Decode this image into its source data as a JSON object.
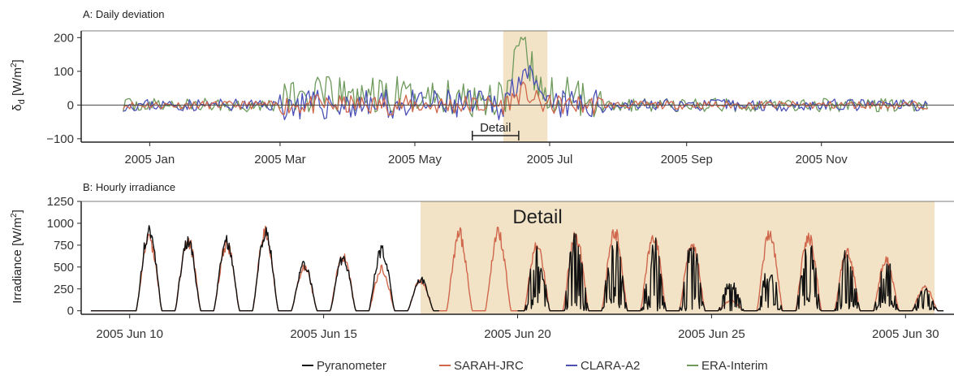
{
  "colors": {
    "Pyranometer": "#111111",
    "SARAH-JRC": "#d0674c",
    "CLARA-A2": "#4a4fb8",
    "ERA-Interim": "#6e9a5c",
    "highlight": "#f2e3c6",
    "grid": "#777777"
  },
  "legend": [
    "Pyranometer",
    "SARAH-JRC",
    "CLARA-A2",
    "ERA-Interim"
  ],
  "chart_data": [
    {
      "type": "line",
      "title": "A: Daily deviation",
      "ylabel_main": "δ",
      "ylabel_sub": "d",
      "ylabel_unit": " [W/m",
      "ylabel_sup": "2",
      "ylabel_end": "]",
      "ylim": [
        -110,
        220
      ],
      "yticks": [
        -100,
        0,
        100,
        200
      ],
      "yticklabels": [
        "−100",
        "0",
        "100",
        "200"
      ],
      "xlim": [
        "2004-12-01",
        "2005-12-31"
      ],
      "xticks": [
        "2005-01-01",
        "2005-03-01",
        "2005-05-01",
        "2005-07-01",
        "2005-09-01",
        "2005-11-01"
      ],
      "xticklabels": [
        "2005 Jan",
        "2005 Mar",
        "2005 May",
        "2005 Jul",
        "2005 Sep",
        "2005 Nov"
      ],
      "highlight": [
        "2005-06-10",
        "2005-06-30"
      ],
      "detail_label": "Detail",
      "detail_bracket": [
        "2005-05-27",
        "2005-06-17"
      ],
      "reference_line": 0,
      "series": [
        {
          "name": "SARAH-JRC",
          "x_start": "2004-12-20",
          "amplitude": 12,
          "amp_hot": 30,
          "seed": 11
        },
        {
          "name": "CLARA-A2",
          "x_start": "2004-12-20",
          "amplitude": 18,
          "amp_hot": 45,
          "seed": 23
        },
        {
          "name": "ERA-Interim",
          "x_start": "2004-12-20",
          "amplitude": 20,
          "amp_hot": 60,
          "seed": 37
        }
      ]
    },
    {
      "type": "line",
      "title": "B: Hourly irradiance",
      "ylabel": "Irradiance [W/m",
      "ylabel_sup": "2",
      "ylabel_end": "]",
      "ylim": [
        -40,
        1250
      ],
      "yticks": [
        0,
        250,
        500,
        750,
        1000,
        1250
      ],
      "xlim": [
        "2005-06-08T18:00",
        "2005-07-01T06:00"
      ],
      "xticks": [
        "2005-06-10",
        "2005-06-15",
        "2005-06-20",
        "2005-06-25",
        "2005-06-30"
      ],
      "xticklabels": [
        "2005 Jun 10",
        "2005 Jun 15",
        "2005 Jun 20",
        "2005 Jun 25",
        "2005 Jun 30"
      ],
      "highlight": [
        "2005-06-17T12:00",
        "2005-06-30T18:00"
      ],
      "detail_label": "Detail",
      "days": [
        "06-09",
        "06-10",
        "06-11",
        "06-12",
        "06-13",
        "06-14",
        "06-15",
        "06-16",
        "06-17",
        "06-18",
        "06-19",
        "06-20",
        "06-21",
        "06-22",
        "06-23",
        "06-24",
        "06-25",
        "06-26",
        "06-27",
        "06-28",
        "06-29",
        "06-30"
      ],
      "sarah_daily_peak": [
        0,
        870,
        850,
        800,
        930,
        520,
        650,
        500,
        360,
        910,
        920,
        800,
        900,
        940,
        900,
        820,
        120,
        920,
        900,
        700,
        600,
        280
      ],
      "pyranometer_daily_peak": [
        0,
        950,
        820,
        820,
        940,
        550,
        620,
        720,
        380,
        0,
        0,
        780,
        910,
        940,
        840,
        800,
        370,
        520,
        860,
        700,
        600,
        250
      ],
      "pyranometer_range": [
        "2005-06-09",
        "2005-06-18",
        "2005-06-20",
        "2005-07-01"
      ]
    }
  ]
}
